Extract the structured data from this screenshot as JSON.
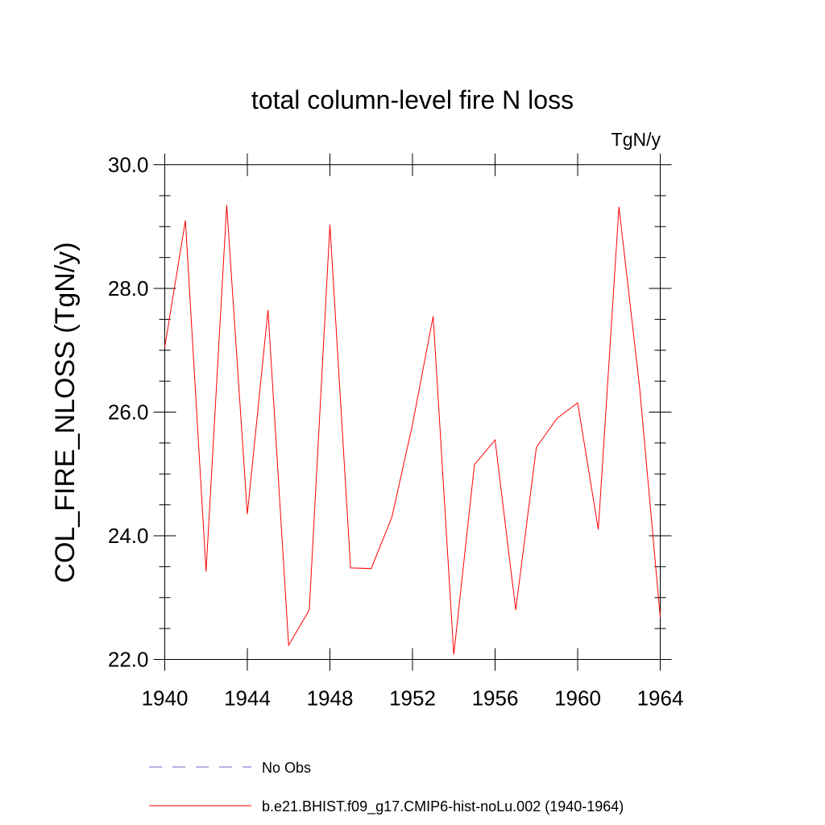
{
  "chart_data": {
    "type": "line",
    "title": "total column-level fire N loss",
    "units": "TgN/y",
    "ylabel": "COL_FIRE_NLOSS  (TgN/y)",
    "xlabel": "",
    "xlim": [
      1940,
      1964
    ],
    "ylim": [
      22.0,
      30.0
    ],
    "x_ticks": [
      1940,
      1944,
      1948,
      1952,
      1956,
      1960,
      1964
    ],
    "x_tick_labels": [
      "1940",
      "1944",
      "1948",
      "1952",
      "1956",
      "1960",
      "1964"
    ],
    "y_ticks": [
      22,
      24,
      26,
      28,
      30
    ],
    "y_tick_labels": [
      "22.0",
      "24.0",
      "26.0",
      "28.0",
      "30.0"
    ],
    "grid": false,
    "legend_position": "bottom",
    "series": [
      {
        "name": "b.e21.BHIST.f09_g17.CMIP6-hist-noLu.002 (1940-1964)",
        "color": "#ff0000",
        "dash": "solid",
        "x": [
          1940,
          1941,
          1942,
          1943,
          1944,
          1945,
          1946,
          1947,
          1948,
          1949,
          1950,
          1951,
          1952,
          1953,
          1954,
          1955,
          1956,
          1957,
          1958,
          1959,
          1960,
          1961,
          1962,
          1963,
          1964
        ],
        "y": [
          27.05,
          29.1,
          23.42,
          29.35,
          24.35,
          27.65,
          22.23,
          22.8,
          29.03,
          23.48,
          23.47,
          24.3,
          25.8,
          27.55,
          22.08,
          25.15,
          25.55,
          22.8,
          25.43,
          25.9,
          26.15,
          24.1,
          29.32,
          26.4,
          22.68
        ]
      }
    ],
    "legend": [
      {
        "label": "No Obs",
        "color": "#6666cc",
        "dash": "dashed"
      },
      {
        "label": "b.e21.BHIST.f09_g17.CMIP6-hist-noLu.002 (1940-1964)",
        "color": "#ff0000",
        "dash": "solid"
      }
    ]
  }
}
